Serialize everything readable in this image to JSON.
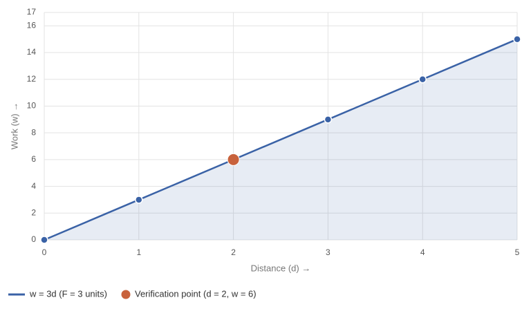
{
  "chart_data": {
    "type": "line",
    "x_label": "Distance (d) →",
    "y_label": "Work (w) →",
    "x": [
      0,
      1,
      2,
      3,
      4,
      5
    ],
    "series": [
      {
        "name": "w = 3d (F = 3 units)",
        "color": "#3a62a6",
        "values": [
          0,
          3,
          6,
          9,
          12,
          15
        ],
        "area": true
      },
      {
        "name": "Verification point (d = 2, w = 6)",
        "color": "#c8623c",
        "type": "scatter",
        "x": [
          2
        ],
        "values": [
          6
        ]
      }
    ],
    "xlim": [
      0,
      5
    ],
    "xticks": [
      0,
      1,
      2,
      3,
      4,
      5
    ],
    "ylim": [
      0,
      17
    ],
    "yticks": [
      0,
      2,
      4,
      6,
      8,
      10,
      12,
      14,
      16,
      17
    ],
    "grid": true,
    "legend": "bottom"
  }
}
